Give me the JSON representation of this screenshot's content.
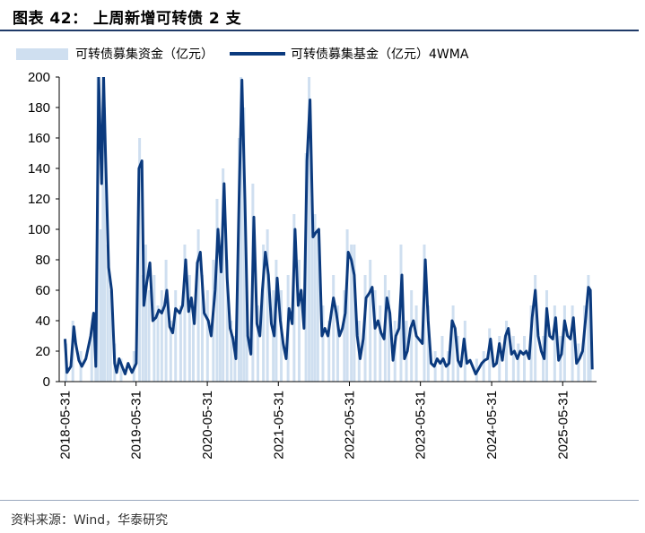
{
  "title": "图表 42： 上周新增可转债 2 支",
  "source": "资料来源：Wind，华泰研究",
  "colors": {
    "bars": "#cfdff0",
    "line": "#0b3a7e",
    "rule": "#1f3a68"
  },
  "chart_data": {
    "type": "bar+line",
    "xlabel": "",
    "ylabel": "",
    "ylim": [
      0,
      200
    ],
    "yticks": [
      "0",
      "20",
      "40",
      "60",
      "80",
      "100",
      "120",
      "140",
      "160",
      "180",
      "200"
    ],
    "xticks": [
      "2018-05-31",
      "2019-05-31",
      "2020-05-31",
      "2021-05-31",
      "2022-05-31",
      "2023-05-31",
      "2024-05-31",
      "2025-05-31"
    ],
    "xlim": [
      "2018-05-01",
      "2025-11-21"
    ],
    "legend": [
      "可转债募集资金（亿元）",
      "可转债募集基金（亿元）4WMA"
    ],
    "legend_position": "top",
    "series_4wma": {
      "name": "可转债募集基金（亿元）4WMA",
      "points": [
        [
          "2018-05-31",
          28
        ],
        [
          "2018-06-10",
          6
        ],
        [
          "2018-06-30",
          10
        ],
        [
          "2018-07-15",
          36
        ],
        [
          "2018-07-25",
          25
        ],
        [
          "2018-08-10",
          14
        ],
        [
          "2018-08-25",
          10
        ],
        [
          "2018-09-15",
          15
        ],
        [
          "2018-10-10",
          30
        ],
        [
          "2018-10-25",
          45
        ],
        [
          "2018-11-05",
          10
        ],
        [
          "2018-11-20",
          200
        ],
        [
          "2018-12-05",
          130
        ],
        [
          "2018-12-15",
          200
        ],
        [
          "2018-12-25",
          150
        ],
        [
          "2019-01-10",
          75
        ],
        [
          "2019-01-25",
          60
        ],
        [
          "2019-02-10",
          12
        ],
        [
          "2019-02-20",
          6
        ],
        [
          "2019-03-05",
          15
        ],
        [
          "2019-03-20",
          10
        ],
        [
          "2019-04-05",
          5
        ],
        [
          "2019-04-20",
          12
        ],
        [
          "2019-05-10",
          6
        ],
        [
          "2019-06-01",
          12
        ],
        [
          "2019-06-15",
          140
        ],
        [
          "2019-06-30",
          145
        ],
        [
          "2019-07-10",
          50
        ],
        [
          "2019-07-25",
          65
        ],
        [
          "2019-08-10",
          78
        ],
        [
          "2019-08-25",
          40
        ],
        [
          "2019-09-10",
          42
        ],
        [
          "2019-09-25",
          47
        ],
        [
          "2019-10-10",
          45
        ],
        [
          "2019-10-25",
          50
        ],
        [
          "2019-11-05",
          60
        ],
        [
          "2019-11-20",
          36
        ],
        [
          "2019-12-05",
          32
        ],
        [
          "2019-12-20",
          48
        ],
        [
          "2020-01-10",
          45
        ],
        [
          "2020-01-25",
          50
        ],
        [
          "2020-02-10",
          80
        ],
        [
          "2020-02-25",
          46
        ],
        [
          "2020-03-10",
          55
        ],
        [
          "2020-03-25",
          38
        ],
        [
          "2020-04-10",
          78
        ],
        [
          "2020-04-25",
          85
        ],
        [
          "2020-05-15",
          45
        ],
        [
          "2020-06-05",
          40
        ],
        [
          "2020-06-20",
          30
        ],
        [
          "2020-07-10",
          60
        ],
        [
          "2020-07-25",
          100
        ],
        [
          "2020-08-10",
          72
        ],
        [
          "2020-08-25",
          130
        ],
        [
          "2020-09-10",
          68
        ],
        [
          "2020-09-25",
          35
        ],
        [
          "2020-10-10",
          28
        ],
        [
          "2020-10-25",
          15
        ],
        [
          "2020-11-10",
          120
        ],
        [
          "2020-11-25",
          198
        ],
        [
          "2020-12-10",
          120
        ],
        [
          "2020-12-25",
          30
        ],
        [
          "2021-01-10",
          18
        ],
        [
          "2021-01-25",
          108
        ],
        [
          "2021-02-10",
          38
        ],
        [
          "2021-02-25",
          30
        ],
        [
          "2021-03-10",
          60
        ],
        [
          "2021-03-25",
          85
        ],
        [
          "2021-04-10",
          70
        ],
        [
          "2021-04-25",
          38
        ],
        [
          "2021-05-10",
          30
        ],
        [
          "2021-05-25",
          68
        ],
        [
          "2021-06-10",
          40
        ],
        [
          "2021-06-25",
          25
        ],
        [
          "2021-07-10",
          15
        ],
        [
          "2021-07-25",
          48
        ],
        [
          "2021-08-10",
          38
        ],
        [
          "2021-08-25",
          100
        ],
        [
          "2021-09-10",
          50
        ],
        [
          "2021-09-25",
          60
        ],
        [
          "2021-10-10",
          35
        ],
        [
          "2021-10-25",
          145
        ],
        [
          "2021-11-10",
          185
        ],
        [
          "2021-11-25",
          95
        ],
        [
          "2021-12-10",
          98
        ],
        [
          "2021-12-25",
          100
        ],
        [
          "2022-01-10",
          30
        ],
        [
          "2022-01-25",
          35
        ],
        [
          "2022-02-10",
          30
        ],
        [
          "2022-03-10",
          55
        ],
        [
          "2022-03-25",
          45
        ],
        [
          "2022-04-10",
          30
        ],
        [
          "2022-04-25",
          35
        ],
        [
          "2022-05-10",
          45
        ],
        [
          "2022-05-25",
          85
        ],
        [
          "2022-06-10",
          80
        ],
        [
          "2022-06-25",
          70
        ],
        [
          "2022-07-10",
          30
        ],
        [
          "2022-07-25",
          15
        ],
        [
          "2022-08-10",
          28
        ],
        [
          "2022-08-25",
          55
        ],
        [
          "2022-09-10",
          58
        ],
        [
          "2022-09-25",
          62
        ],
        [
          "2022-10-10",
          35
        ],
        [
          "2022-10-25",
          40
        ],
        [
          "2022-11-10",
          32
        ],
        [
          "2022-11-25",
          28
        ],
        [
          "2022-12-10",
          55
        ],
        [
          "2022-12-25",
          45
        ],
        [
          "2023-01-10",
          14
        ],
        [
          "2023-01-25",
          30
        ],
        [
          "2023-02-10",
          35
        ],
        [
          "2023-02-25",
          70
        ],
        [
          "2023-03-10",
          15
        ],
        [
          "2023-03-25",
          20
        ],
        [
          "2023-04-10",
          35
        ],
        [
          "2023-04-25",
          40
        ],
        [
          "2023-05-10",
          30
        ],
        [
          "2023-06-10",
          25
        ],
        [
          "2023-06-25",
          80
        ],
        [
          "2023-07-10",
          40
        ],
        [
          "2023-07-25",
          12
        ],
        [
          "2023-08-10",
          10
        ],
        [
          "2023-08-25",
          15
        ],
        [
          "2023-09-10",
          12
        ],
        [
          "2023-09-25",
          15
        ],
        [
          "2023-10-10",
          10
        ],
        [
          "2023-10-25",
          12
        ],
        [
          "2023-11-10",
          40
        ],
        [
          "2023-11-25",
          35
        ],
        [
          "2023-12-10",
          14
        ],
        [
          "2023-12-25",
          10
        ],
        [
          "2024-01-10",
          28
        ],
        [
          "2024-01-25",
          12
        ],
        [
          "2024-02-10",
          14
        ],
        [
          "2024-03-10",
          5
        ],
        [
          "2024-04-10",
          12
        ],
        [
          "2024-04-25",
          14
        ],
        [
          "2024-05-10",
          15
        ],
        [
          "2024-05-25",
          28
        ],
        [
          "2024-06-10",
          10
        ],
        [
          "2024-06-25",
          12
        ],
        [
          "2024-07-10",
          25
        ],
        [
          "2024-07-25",
          14
        ],
        [
          "2024-08-10",
          30
        ],
        [
          "2024-08-25",
          35
        ],
        [
          "2024-09-10",
          18
        ],
        [
          "2024-09-25",
          20
        ],
        [
          "2024-10-10",
          15
        ],
        [
          "2024-10-25",
          20
        ],
        [
          "2024-11-10",
          18
        ],
        [
          "2024-11-25",
          20
        ],
        [
          "2024-12-10",
          15
        ],
        [
          "2024-12-25",
          42
        ],
        [
          "2025-01-10",
          60
        ],
        [
          "2025-01-25",
          30
        ],
        [
          "2025-02-10",
          20
        ],
        [
          "2025-02-25",
          15
        ],
        [
          "2025-03-10",
          48
        ],
        [
          "2025-03-25",
          30
        ],
        [
          "2025-04-10",
          28
        ],
        [
          "2025-04-25",
          42
        ],
        [
          "2025-05-10",
          14
        ],
        [
          "2025-05-25",
          18
        ],
        [
          "2025-06-10",
          40
        ],
        [
          "2025-06-25",
          30
        ],
        [
          "2025-07-10",
          28
        ],
        [
          "2025-07-25",
          42
        ],
        [
          "2025-08-10",
          12
        ],
        [
          "2025-08-25",
          15
        ],
        [
          "2025-09-10",
          20
        ],
        [
          "2025-09-25",
          40
        ],
        [
          "2025-10-10",
          62
        ],
        [
          "2025-10-20",
          60
        ],
        [
          "2025-10-30",
          8
        ]
      ]
    },
    "series_weekly": {
      "name": "可转债募集资金（亿元）",
      "points": [
        [
          "2018-06-05",
          25
        ],
        [
          "2018-07-10",
          40
        ],
        [
          "2018-08-20",
          20
        ],
        [
          "2018-10-15",
          35
        ],
        [
          "2018-11-05",
          20
        ],
        [
          "2018-11-15",
          210
        ],
        [
          "2018-12-01",
          100
        ],
        [
          "2018-12-12",
          200
        ],
        [
          "2018-12-20",
          180
        ],
        [
          "2019-01-05",
          90
        ],
        [
          "2019-01-20",
          60
        ],
        [
          "2019-02-10",
          25
        ],
        [
          "2019-03-15",
          15
        ],
        [
          "2019-05-20",
          20
        ],
        [
          "2019-06-18",
          160
        ],
        [
          "2019-07-05",
          70
        ],
        [
          "2019-07-20",
          90
        ],
        [
          "2019-08-05",
          60
        ],
        [
          "2019-09-01",
          70
        ],
        [
          "2019-09-20",
          50
        ],
        [
          "2019-10-10",
          60
        ],
        [
          "2019-11-01",
          80
        ],
        [
          "2019-11-25",
          40
        ],
        [
          "2019-12-20",
          60
        ],
        [
          "2020-01-15",
          50
        ],
        [
          "2020-02-05",
          90
        ],
        [
          "2020-03-01",
          70
        ],
        [
          "2020-03-20",
          50
        ],
        [
          "2020-04-15",
          100
        ],
        [
          "2020-05-05",
          70
        ],
        [
          "2020-06-01",
          60
        ],
        [
          "2020-07-01",
          80
        ],
        [
          "2020-07-20",
          120
        ],
        [
          "2020-08-05",
          90
        ],
        [
          "2020-08-20",
          140
        ],
        [
          "2020-09-10",
          80
        ],
        [
          "2020-10-01",
          40
        ],
        [
          "2020-10-20",
          30
        ],
        [
          "2020-11-10",
          160
        ],
        [
          "2020-11-20",
          200
        ],
        [
          "2020-12-05",
          180
        ],
        [
          "2020-12-20",
          60
        ],
        [
          "2021-01-20",
          130
        ],
        [
          "2021-02-15",
          50
        ],
        [
          "2021-03-15",
          90
        ],
        [
          "2021-04-05",
          100
        ],
        [
          "2021-05-05",
          60
        ],
        [
          "2021-05-20",
          80
        ],
        [
          "2021-06-15",
          60
        ],
        [
          "2021-07-20",
          70
        ],
        [
          "2021-08-20",
          110
        ],
        [
          "2021-09-15",
          80
        ],
        [
          "2021-10-20",
          150
        ],
        [
          "2021-11-05",
          200
        ],
        [
          "2021-11-20",
          120
        ],
        [
          "2021-12-05",
          110
        ],
        [
          "2021-12-20",
          100
        ],
        [
          "2022-01-15",
          50
        ],
        [
          "2022-02-15",
          40
        ],
        [
          "2022-03-10",
          70
        ],
        [
          "2022-04-01",
          50
        ],
        [
          "2022-05-05",
          60
        ],
        [
          "2022-05-20",
          100
        ],
        [
          "2022-06-10",
          90
        ],
        [
          "2022-06-25",
          90
        ],
        [
          "2022-07-20",
          40
        ],
        [
          "2022-08-20",
          70
        ],
        [
          "2022-09-15",
          80
        ],
        [
          "2022-10-10",
          60
        ],
        [
          "2022-11-05",
          50
        ],
        [
          "2022-12-01",
          70
        ],
        [
          "2022-12-20",
          60
        ],
        [
          "2023-01-20",
          40
        ],
        [
          "2023-02-20",
          90
        ],
        [
          "2023-03-20",
          40
        ],
        [
          "2023-04-15",
          60
        ],
        [
          "2023-05-10",
          50
        ],
        [
          "2023-06-20",
          90
        ],
        [
          "2023-07-10",
          50
        ],
        [
          "2023-08-15",
          20
        ],
        [
          "2023-09-20",
          30
        ],
        [
          "2023-10-20",
          20
        ],
        [
          "2023-11-15",
          50
        ],
        [
          "2023-12-10",
          30
        ],
        [
          "2024-01-15",
          40
        ],
        [
          "2024-03-15",
          15
        ],
        [
          "2024-04-20",
          20
        ],
        [
          "2024-05-20",
          35
        ],
        [
          "2024-07-10",
          30
        ],
        [
          "2024-08-15",
          40
        ],
        [
          "2024-09-20",
          30
        ],
        [
          "2024-10-15",
          25
        ],
        [
          "2024-11-15",
          30
        ],
        [
          "2024-12-20",
          50
        ],
        [
          "2025-01-10",
          70
        ],
        [
          "2025-02-20",
          30
        ],
        [
          "2025-03-10",
          60
        ],
        [
          "2025-04-20",
          50
        ],
        [
          "2025-05-20",
          30
        ],
        [
          "2025-06-10",
          50
        ],
        [
          "2025-07-20",
          50
        ],
        [
          "2025-08-20",
          25
        ],
        [
          "2025-09-20",
          50
        ],
        [
          "2025-10-10",
          70
        ],
        [
          "2025-10-20",
          60
        ]
      ]
    }
  }
}
